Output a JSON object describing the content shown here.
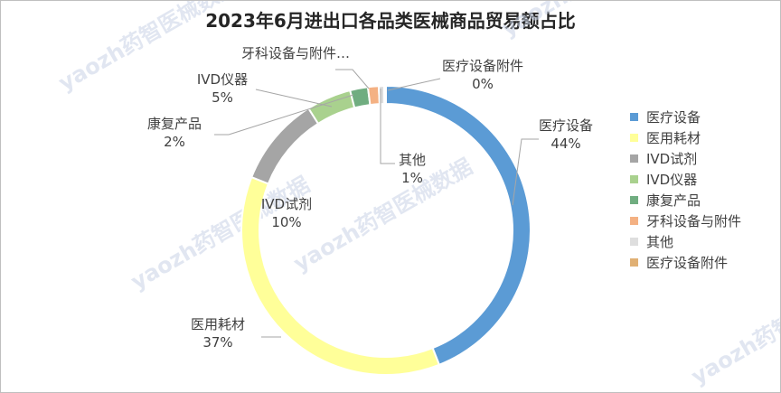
{
  "chart_data": {
    "type": "pie",
    "title": "2023年6月进出口各品类医械商品贸易额占比",
    "slices": [
      {
        "name": "医疗设备",
        "value": 44,
        "label": "医疗设备",
        "pct_label": "44%",
        "color": "#5b9bd5"
      },
      {
        "name": "医用耗材",
        "value": 37,
        "label": "医用耗材",
        "pct_label": "37%",
        "color": "#ffff99"
      },
      {
        "name": "IVD试剂",
        "value": 10,
        "label": "IVD试剂",
        "pct_label": "10%",
        "color": "#a5a5a5"
      },
      {
        "name": "IVD仪器",
        "value": 5,
        "label": "IVD仪器",
        "pct_label": "5%",
        "color": "#a9d18e"
      },
      {
        "name": "康复产品",
        "value": 2,
        "label": "康复产品",
        "pct_label": "2%",
        "color": "#70ad80"
      },
      {
        "name": "牙科设备与附件",
        "value": 1.2,
        "label": "牙科设备与附件…",
        "pct_label": "",
        "color": "#f4b183"
      },
      {
        "name": "其他",
        "value": 0.6,
        "label": "其他",
        "pct_label": "1%",
        "color": "#dedede"
      },
      {
        "name": "医疗设备附件",
        "value": 0.2,
        "label": "医疗设备附件",
        "pct_label": "0%",
        "color": "#e0b074"
      }
    ],
    "legend": [
      "医疗设备",
      "医用耗材",
      "IVD试剂",
      "IVD仪器",
      "康复产品",
      "牙科设备与附件",
      "其他",
      "医疗设备附件"
    ],
    "legend_position": "right",
    "donut": true
  },
  "watermark": "yaozh药智医械数据"
}
